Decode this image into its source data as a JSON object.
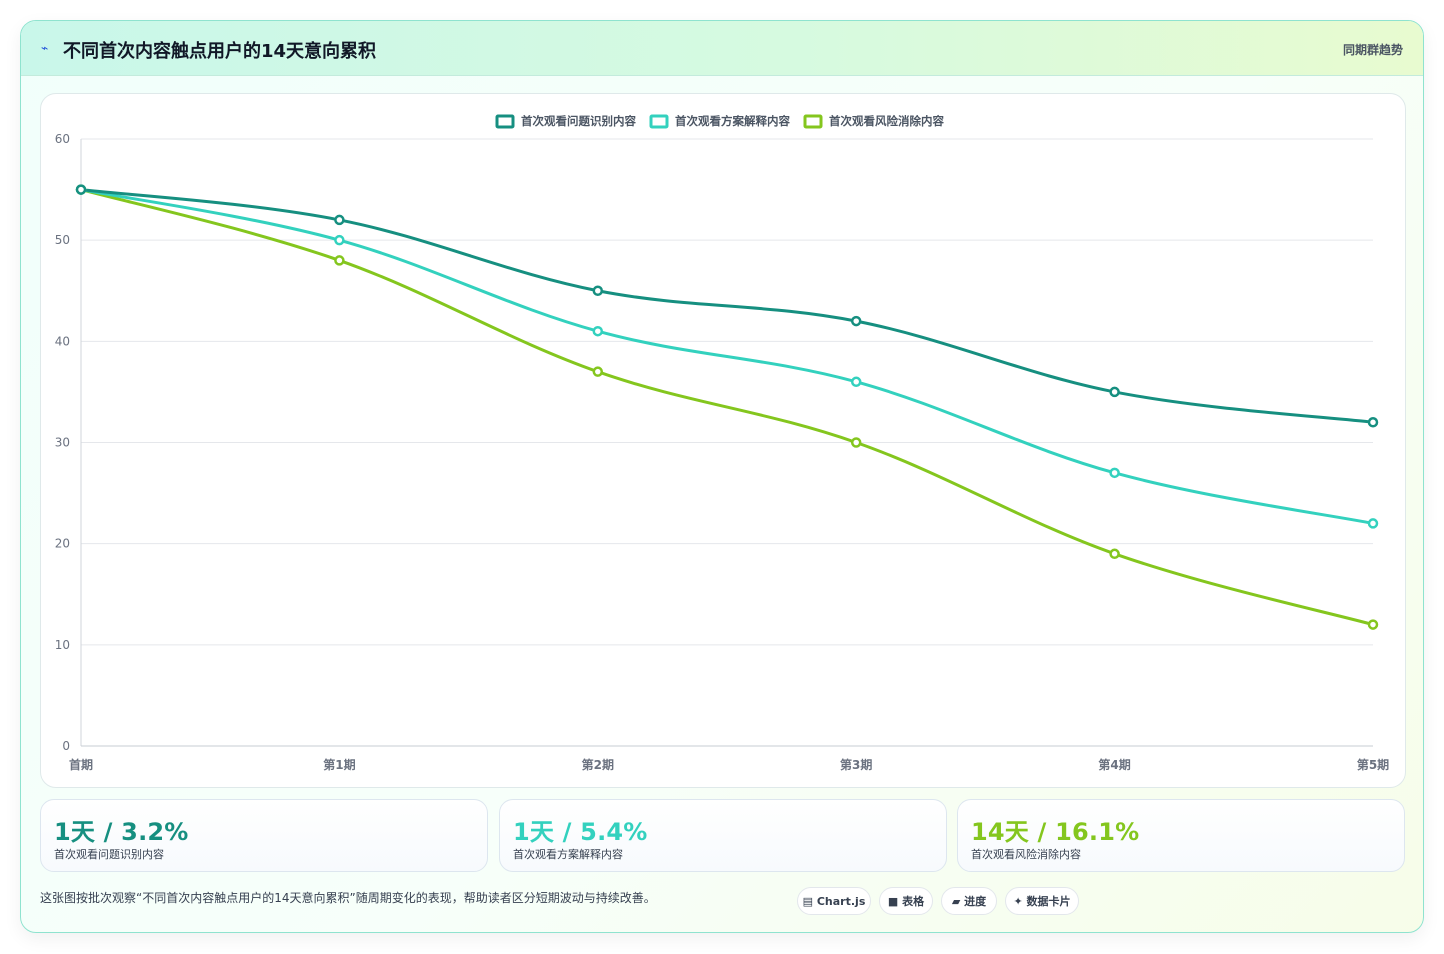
{
  "header": {
    "icon": "lightning-icon",
    "title": "不同首次内容触点用户的14天意向累积",
    "tag": "同期群趋势"
  },
  "colors": {
    "series1": "#168f80",
    "series2": "#33d1be",
    "series3": "#84c61e",
    "grid": "#e5e7eb",
    "tick": "#6b7280"
  },
  "chart_data": {
    "type": "line",
    "categories": [
      "首期",
      "第1期",
      "第2期",
      "第3期",
      "第4期",
      "第5期"
    ],
    "series": [
      {
        "name": "首次观看问题识别内容",
        "values": [
          55,
          52,
          45,
          42,
          35,
          32
        ]
      },
      {
        "name": "首次观看方案解释内容",
        "values": [
          55,
          50,
          41,
          36,
          27,
          22
        ]
      },
      {
        "name": "首次观看风险消除内容",
        "values": [
          55,
          48,
          37,
          30,
          19,
          12
        ]
      }
    ],
    "ylim": [
      0,
      60
    ],
    "yticks": [
      0,
      10,
      20,
      30,
      40,
      50,
      60
    ],
    "grid": true,
    "legend": "top-center",
    "smooth": true
  },
  "stats": [
    {
      "value": "1天 / 3.2%",
      "label": "首次观看问题识别内容"
    },
    {
      "value": "1天 / 5.4%",
      "label": "首次观看方案解释内容"
    },
    {
      "value": "14天 / 16.1%",
      "label": "首次观看风险消除内容"
    }
  ],
  "note": "这张图按批次观察“不同首次内容触点用户的14天意向累积”随周期变化的表现，帮助读者区分短期波动与持续改善。",
  "chips": [
    {
      "icon": "chart-icon",
      "label": "Chart.js"
    },
    {
      "icon": "table-icon",
      "label": "表格"
    },
    {
      "icon": "progress-icon",
      "label": "进度"
    },
    {
      "icon": "sparkle-icon",
      "label": "数据卡片"
    }
  ],
  "chip_glyphs": [
    "▤",
    "■",
    "▰",
    "✦"
  ]
}
